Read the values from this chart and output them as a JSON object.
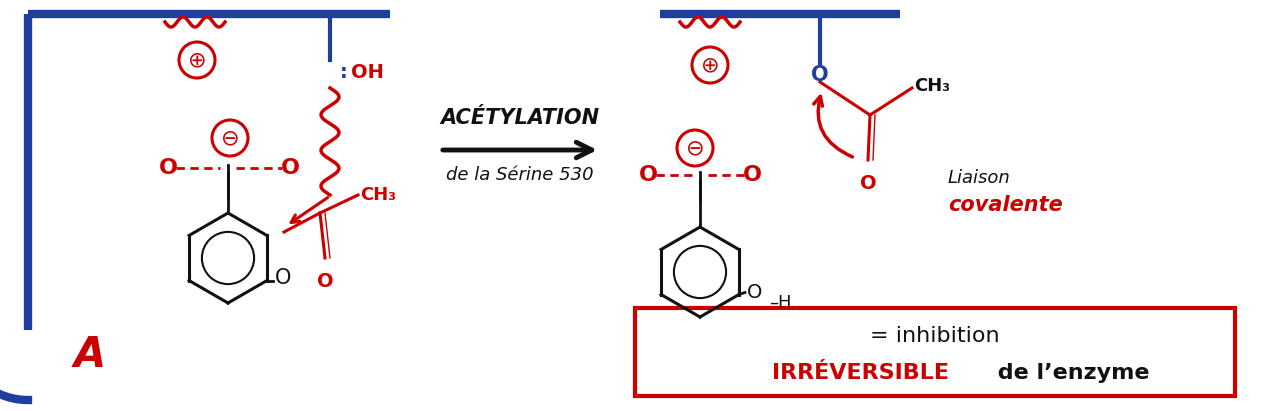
{
  "background_color": "#ffffff",
  "fig_width": 12.61,
  "fig_height": 4.11,
  "arrow_label_line1": "ACÉTYLATION",
  "arrow_label_line2": "de la Sérine 530",
  "box_line1": "= inhibition",
  "box_line2_red": "IRRÉVERSIBLE",
  "box_line2_black": " de l’enzyme",
  "label_A": "A",
  "liaison_text1": "Liaison",
  "liaison_text2": "covalente",
  "blue_color": "#1e3fa0",
  "red_color": "#cc0000",
  "black_color": "#111111",
  "dark_blue": "#1e3fa0"
}
